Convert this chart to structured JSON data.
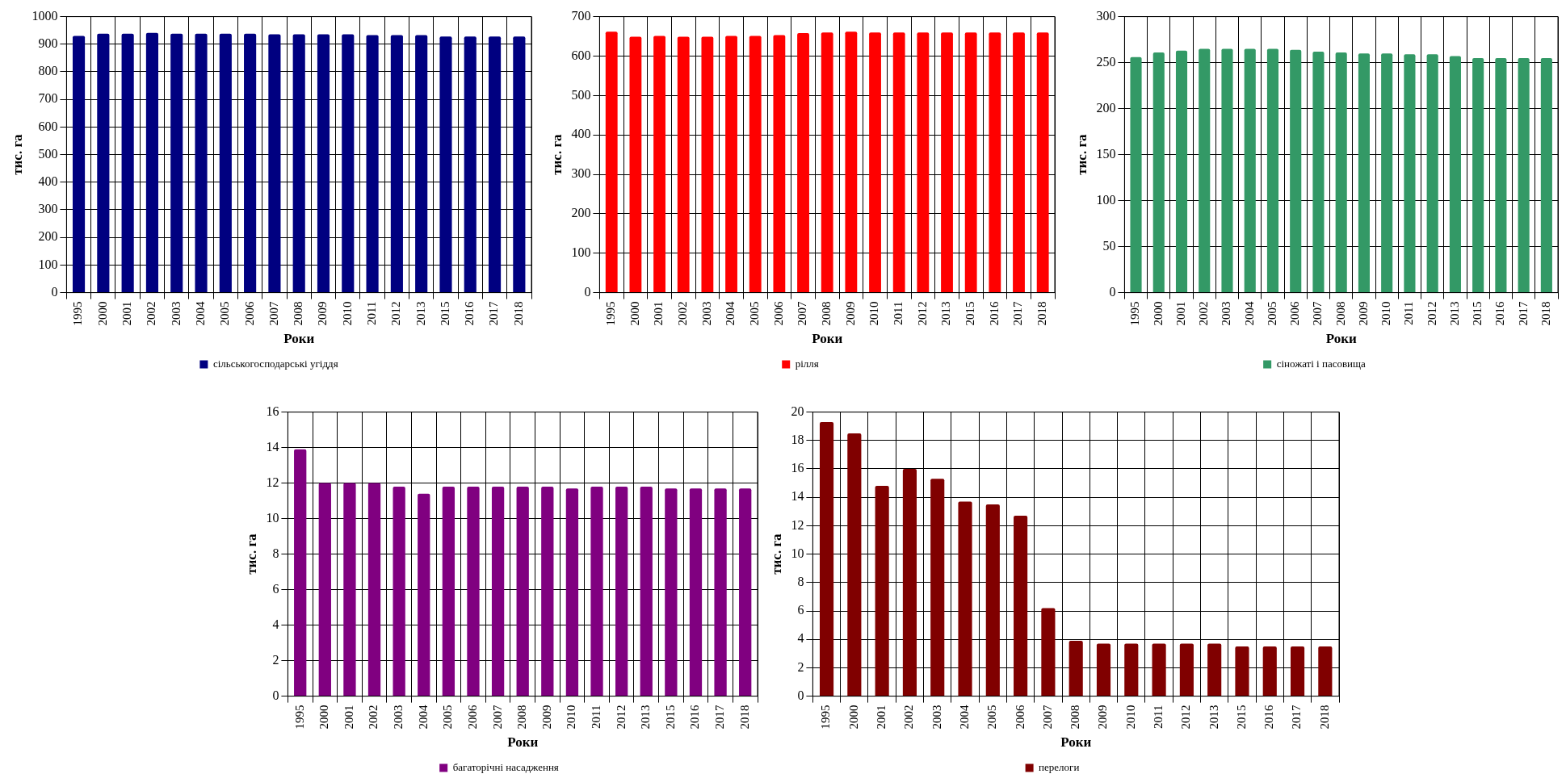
{
  "chart_data": [
    {
      "type": "bar",
      "xlabel": "Роки",
      "ylabel": "тис. га",
      "categories": [
        "1995",
        "2000",
        "2001",
        "2002",
        "2003",
        "2004",
        "2005",
        "2006",
        "2007",
        "2008",
        "2009",
        "2010",
        "2011",
        "2012",
        "2013",
        "2015",
        "2016",
        "2017",
        "2018"
      ],
      "series": [
        {
          "name": "сільськогосподарські угіддя",
          "color": "#000080",
          "values": [
            930,
            938,
            938,
            941,
            938,
            938,
            938,
            938,
            936,
            936,
            936,
            936,
            933,
            933,
            933,
            928,
            928,
            928,
            928
          ]
        }
      ],
      "ylim": [
        0,
        1000
      ],
      "yticks": [
        0,
        100,
        200,
        300,
        400,
        500,
        600,
        700,
        800,
        900,
        1000
      ],
      "grid": true,
      "legend": "bottom"
    },
    {
      "type": "bar",
      "xlabel": "Роки",
      "ylabel": "тис. га",
      "categories": [
        "1995",
        "2000",
        "2001",
        "2002",
        "2003",
        "2004",
        "2005",
        "2006",
        "2007",
        "2008",
        "2009",
        "2010",
        "2011",
        "2012",
        "2013",
        "2015",
        "2016",
        "2017",
        "2018"
      ],
      "series": [
        {
          "name": "рілля",
          "color": "#ff0000",
          "values": [
            662,
            649,
            651,
            649,
            649,
            651,
            651,
            653,
            658,
            660,
            662,
            660,
            660,
            660,
            660,
            660,
            660,
            660,
            660
          ]
        }
      ],
      "ylim": [
        0,
        700
      ],
      "yticks": [
        0,
        100,
        200,
        300,
        400,
        500,
        600,
        700
      ],
      "grid": true,
      "legend": "bottom"
    },
    {
      "type": "bar",
      "xlabel": "Роки",
      "ylabel": "тис. га",
      "categories": [
        "1995",
        "2000",
        "2001",
        "2002",
        "2003",
        "2004",
        "2005",
        "2006",
        "2007",
        "2008",
        "2009",
        "2010",
        "2011",
        "2012",
        "2013",
        "2015",
        "2016",
        "2017",
        "2018"
      ],
      "series": [
        {
          "name": "сіножаті і пасовища",
          "color": "#339966",
          "values": [
            256,
            261,
            263,
            265,
            265,
            265,
            265,
            264,
            262,
            261,
            260,
            260,
            259,
            259,
            257,
            255,
            255,
            255,
            255
          ]
        }
      ],
      "ylim": [
        0,
        300
      ],
      "yticks": [
        0,
        50,
        100,
        150,
        200,
        250,
        300
      ],
      "grid": true,
      "legend": "bottom"
    },
    {
      "type": "bar",
      "xlabel": "Роки",
      "ylabel": "тис. га",
      "categories": [
        "1995",
        "2000",
        "2001",
        "2002",
        "2003",
        "2004",
        "2005",
        "2006",
        "2007",
        "2008",
        "2009",
        "2010",
        "2011",
        "2012",
        "2013",
        "2015",
        "2016",
        "2017",
        "2018"
      ],
      "series": [
        {
          "name": "багаторічні насадження",
          "color": "#800080",
          "values": [
            13.9,
            12.0,
            12.0,
            12.0,
            11.8,
            11.4,
            11.8,
            11.8,
            11.8,
            11.8,
            11.8,
            11.7,
            11.8,
            11.8,
            11.8,
            11.7,
            11.7,
            11.7,
            11.7
          ]
        }
      ],
      "ylim": [
        0,
        16
      ],
      "yticks": [
        0,
        2,
        4,
        6,
        8,
        10,
        12,
        14,
        16
      ],
      "grid": true,
      "legend": "bottom"
    },
    {
      "type": "bar",
      "xlabel": "Роки",
      "ylabel": "тис. га",
      "categories": [
        "1995",
        "2000",
        "2001",
        "2002",
        "2003",
        "2004",
        "2005",
        "2006",
        "2007",
        "2008",
        "2009",
        "2010",
        "2011",
        "2012",
        "2013",
        "2015",
        "2016",
        "2017",
        "2018"
      ],
      "series": [
        {
          "name": "перелоги",
          "color": "#800000",
          "values": [
            19.3,
            18.5,
            14.8,
            16.0,
            15.3,
            13.7,
            13.5,
            12.7,
            6.2,
            3.9,
            3.7,
            3.7,
            3.7,
            3.7,
            3.7,
            3.5,
            3.5,
            3.5,
            3.5
          ]
        }
      ],
      "ylim": [
        0,
        20
      ],
      "yticks": [
        0,
        2,
        4,
        6,
        8,
        10,
        12,
        14,
        16,
        18,
        20
      ],
      "grid": true,
      "legend": "bottom"
    }
  ]
}
